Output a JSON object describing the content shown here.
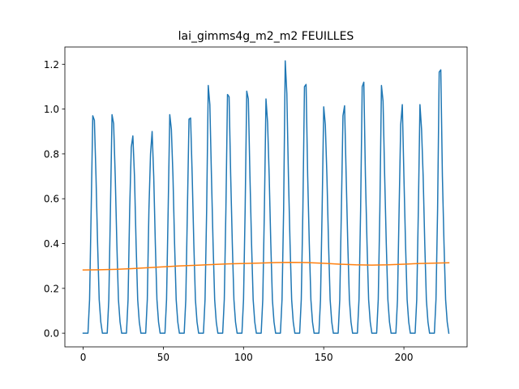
{
  "chart_data": {
    "type": "line",
    "title": "lai_gimms4g_m2_m2 FEUILLES",
    "xlabel": "",
    "ylabel": "",
    "xlim": [
      -11.4,
      239.4
    ],
    "ylim": [
      -0.061,
      1.277
    ],
    "xticks": [
      0,
      50,
      100,
      150,
      200
    ],
    "yticks": [
      0.0,
      0.2,
      0.4,
      0.6,
      0.8,
      1.0,
      1.2
    ],
    "grid": false,
    "legend": null,
    "peaks": [
      [
        6,
        0.97,
        0.95
      ],
      [
        18,
        0.975,
        0.935
      ],
      [
        30,
        0.83,
        0.88
      ],
      [
        42,
        0.8,
        0.9
      ],
      [
        54,
        0.975,
        0.91
      ],
      [
        66,
        0.955,
        0.96
      ],
      [
        78,
        1.105,
        1.02
      ],
      [
        90,
        1.065,
        1.055
      ],
      [
        102,
        1.08,
        1.045
      ],
      [
        114,
        1.045,
        0.94
      ],
      [
        126,
        1.215,
        1.07
      ],
      [
        138,
        1.1,
        1.11
      ],
      [
        150,
        1.01,
        0.93
      ],
      [
        162,
        0.97,
        1.015
      ],
      [
        174,
        1.1,
        1.12
      ],
      [
        186,
        1.105,
        1.035
      ],
      [
        198,
        0.93,
        1.02
      ],
      [
        210,
        1.02,
        0.91
      ],
      [
        222,
        1.165,
        1.175
      ]
    ],
    "series": [
      {
        "color": "#1f77b4",
        "values": [
          0.0,
          0.0,
          0.0,
          0.0,
          0.15,
          0.55,
          0.97,
          0.95,
          0.7,
          0.4,
          0.15,
          0.05,
          0.0,
          0.0,
          0.0,
          0.0,
          0.15,
          0.55,
          0.975,
          0.935,
          0.7,
          0.4,
          0.15,
          0.05,
          0.0,
          0.0,
          0.0,
          0.0,
          0.15,
          0.55,
          0.83,
          0.88,
          0.7,
          0.4,
          0.15,
          0.05,
          0.0,
          0.0,
          0.0,
          0.0,
          0.15,
          0.55,
          0.8,
          0.9,
          0.7,
          0.4,
          0.15,
          0.05,
          0.0,
          0.0,
          0.0,
          0.0,
          0.15,
          0.55,
          0.975,
          0.91,
          0.7,
          0.4,
          0.15,
          0.05,
          0.0,
          0.0,
          0.0,
          0.0,
          0.15,
          0.55,
          0.955,
          0.96,
          0.7,
          0.4,
          0.15,
          0.05,
          0.0,
          0.0,
          0.0,
          0.0,
          0.15,
          0.55,
          1.105,
          1.02,
          0.7,
          0.4,
          0.15,
          0.05,
          0.0,
          0.0,
          0.0,
          0.0,
          0.15,
          0.55,
          1.065,
          1.055,
          0.7,
          0.4,
          0.15,
          0.05,
          0.0,
          0.0,
          0.0,
          0.0,
          0.15,
          0.55,
          1.08,
          1.045,
          0.7,
          0.4,
          0.15,
          0.05,
          0.0,
          0.0,
          0.0,
          0.0,
          0.15,
          0.55,
          1.045,
          0.94,
          0.7,
          0.4,
          0.15,
          0.05,
          0.0,
          0.0,
          0.0,
          0.0,
          0.15,
          0.55,
          1.215,
          1.07,
          0.7,
          0.4,
          0.15,
          0.05,
          0.0,
          0.0,
          0.0,
          0.0,
          0.15,
          0.55,
          1.1,
          1.11,
          0.7,
          0.4,
          0.15,
          0.05,
          0.0,
          0.0,
          0.0,
          0.0,
          0.15,
          0.55,
          1.01,
          0.93,
          0.7,
          0.4,
          0.15,
          0.05,
          0.0,
          0.0,
          0.0,
          0.0,
          0.15,
          0.55,
          0.97,
          1.015,
          0.7,
          0.4,
          0.15,
          0.05,
          0.0,
          0.0,
          0.0,
          0.0,
          0.15,
          0.55,
          1.1,
          1.12,
          0.7,
          0.4,
          0.15,
          0.05,
          0.0,
          0.0,
          0.0,
          0.0,
          0.15,
          0.55,
          1.105,
          1.035,
          0.7,
          0.4,
          0.15,
          0.05,
          0.0,
          0.0,
          0.0,
          0.0,
          0.15,
          0.55,
          0.93,
          1.02,
          0.7,
          0.4,
          0.15,
          0.05,
          0.0,
          0.0,
          0.0,
          0.0,
          0.15,
          0.55,
          1.02,
          0.91,
          0.7,
          0.4,
          0.15,
          0.05,
          0.0,
          0.0,
          0.0,
          0.0,
          0.15,
          0.55,
          1.165,
          1.175,
          0.7,
          0.4,
          0.15,
          0.05,
          0.0
        ]
      },
      {
        "color": "#ff7f0e",
        "x": [
          0,
          10,
          20,
          30,
          40,
          50,
          60,
          70,
          80,
          90,
          100,
          110,
          120,
          130,
          140,
          150,
          160,
          170,
          180,
          190,
          200,
          210,
          220,
          228
        ],
        "values": [
          0.282,
          0.283,
          0.285,
          0.288,
          0.292,
          0.296,
          0.3,
          0.303,
          0.306,
          0.309,
          0.311,
          0.313,
          0.315,
          0.316,
          0.315,
          0.312,
          0.308,
          0.305,
          0.304,
          0.305,
          0.308,
          0.311,
          0.313,
          0.314
        ]
      }
    ]
  }
}
